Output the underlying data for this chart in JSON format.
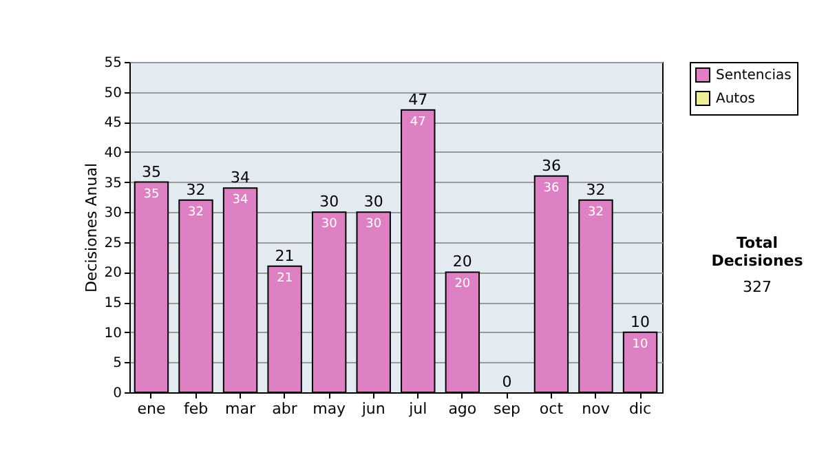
{
  "chart_data": {
    "type": "bar",
    "stacked": true,
    "ylabel": "Decisiones Anual",
    "categories": [
      "ene",
      "feb",
      "mar",
      "abr",
      "may",
      "jun",
      "jul",
      "ago",
      "sep",
      "oct",
      "nov",
      "dic"
    ],
    "series": [
      {
        "name": "Sentencias",
        "color": "#dd80c4",
        "values": [
          35,
          32,
          34,
          21,
          30,
          30,
          47,
          20,
          0,
          36,
          32,
          10
        ],
        "value_labels": [
          "35",
          "32",
          "34",
          "21",
          "30",
          "30",
          "47",
          "20",
          null,
          "36",
          "32",
          "10"
        ]
      },
      {
        "name": "Autos",
        "color": "#eeee99",
        "values": [
          0,
          0,
          0,
          0,
          0,
          0,
          0,
          0,
          0,
          0,
          0,
          0
        ]
      }
    ],
    "totals": [
      "35",
      "32",
      "34",
      "21",
      "30",
      "30",
      "47",
      "20",
      "0",
      "36",
      "32",
      "10"
    ],
    "ylim": [
      0,
      55
    ],
    "yticks": [
      0,
      5,
      10,
      15,
      20,
      25,
      30,
      35,
      40,
      45,
      50,
      55
    ],
    "grid": "y",
    "legend": "right",
    "annotations": [
      "Total Decisiones",
      "327"
    ]
  }
}
